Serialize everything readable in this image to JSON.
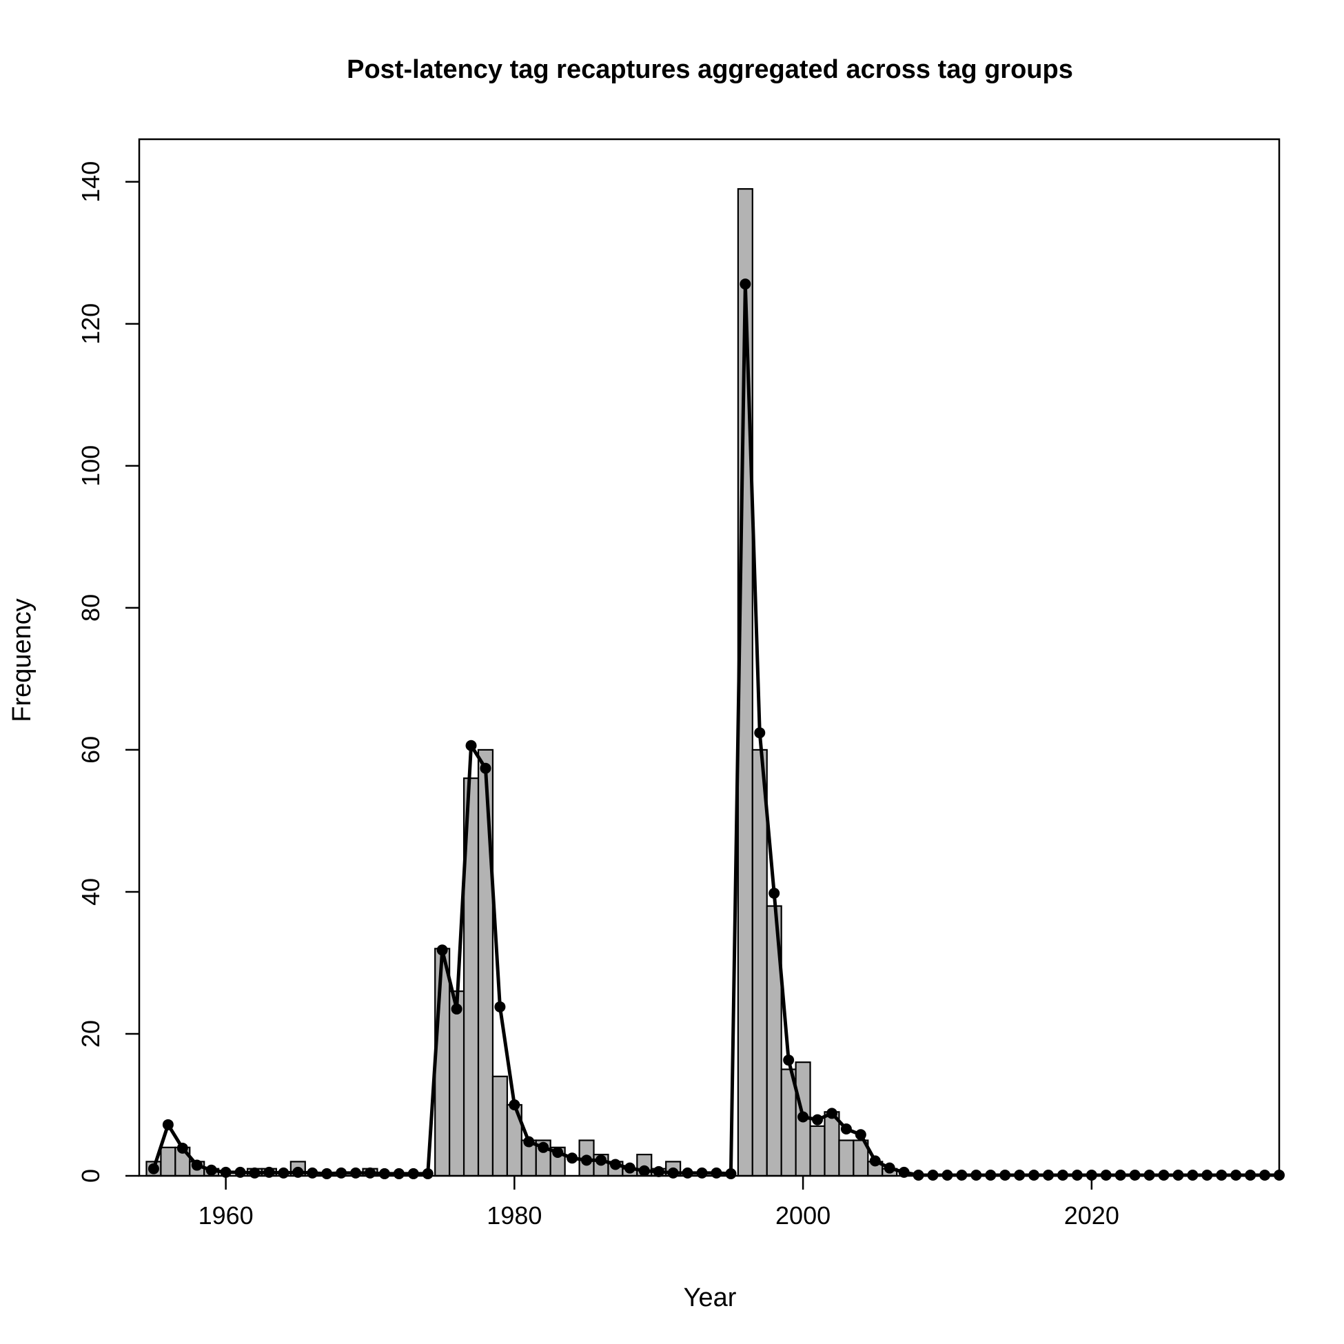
{
  "chart_data": {
    "type": "bar",
    "title": "Post-latency tag recaptures aggregated across tag groups",
    "xlabel": "Year",
    "ylabel": "Frequency",
    "xlim": [
      1954,
      2033
    ],
    "ylim": [
      0,
      146
    ],
    "x_ticks": [
      1960,
      1980,
      2000,
      2020
    ],
    "y_ticks": [
      0,
      20,
      40,
      60,
      80,
      100,
      120,
      140
    ],
    "grid": false,
    "legend": "none",
    "colors": {
      "bar_fill": "#b3b3b3",
      "bar_stroke": "#000000",
      "line": "#000000"
    },
    "bin_width": 1,
    "series": [
      {
        "kind": "bars",
        "x": [
          1955,
          1956,
          1957,
          1958,
          1959,
          1960,
          1961,
          1962,
          1963,
          1964,
          1965,
          1966,
          1967,
          1968,
          1969,
          1970,
          1971,
          1972,
          1973,
          1974,
          1975,
          1976,
          1977,
          1978,
          1979,
          1980,
          1981,
          1982,
          1983,
          1984,
          1985,
          1986,
          1987,
          1988,
          1989,
          1990,
          1991,
          1992,
          1993,
          1994,
          1995,
          1996,
          1997,
          1998,
          1999,
          2000,
          2001,
          2002,
          2003,
          2004,
          2005,
          2006,
          2007,
          2008,
          2009,
          2010,
          2011,
          2012,
          2013,
          2014,
          2015,
          2016,
          2017,
          2018,
          2019,
          2020,
          2021,
          2022,
          2023,
          2024,
          2025,
          2026,
          2027,
          2028,
          2029,
          2030,
          2031,
          2032,
          2033
        ],
        "values": [
          2,
          4,
          4,
          2,
          1,
          0,
          0,
          1,
          1,
          0,
          2,
          0,
          0,
          0,
          0,
          1,
          0,
          0,
          0,
          0,
          32,
          26,
          56,
          60,
          14,
          10,
          5,
          5,
          4,
          0,
          5,
          3,
          2,
          1,
          3,
          1,
          2,
          0,
          0,
          0,
          0,
          139,
          60,
          38,
          15,
          16,
          7,
          9,
          5,
          5,
          2,
          1,
          0,
          0,
          0,
          0,
          0,
          0,
          0,
          0,
          0,
          0,
          0,
          0,
          0,
          0,
          0,
          0,
          0,
          0,
          0,
          0,
          0,
          0,
          0,
          0,
          0,
          0,
          0
        ]
      },
      {
        "kind": "line-points",
        "x": [
          1955,
          1956,
          1957,
          1958,
          1959,
          1960,
          1961,
          1962,
          1963,
          1964,
          1965,
          1966,
          1967,
          1968,
          1969,
          1970,
          1971,
          1972,
          1973,
          1974,
          1975,
          1976,
          1977,
          1978,
          1979,
          1980,
          1981,
          1982,
          1983,
          1984,
          1985,
          1986,
          1987,
          1988,
          1989,
          1990,
          1991,
          1992,
          1993,
          1994,
          1995,
          1996,
          1997,
          1998,
          1999,
          2000,
          2001,
          2002,
          2003,
          2004,
          2005,
          2006,
          2007,
          2008,
          2009,
          2010,
          2011,
          2012,
          2013,
          2014,
          2015,
          2016,
          2017,
          2018,
          2019,
          2020,
          2021,
          2022,
          2023,
          2024,
          2025,
          2026,
          2027,
          2028,
          2029,
          2030,
          2031,
          2032,
          2033
        ],
        "values": [
          1,
          7.2,
          3.9,
          1.5,
          0.8,
          0.5,
          0.5,
          0.4,
          0.5,
          0.4,
          0.5,
          0.4,
          0.3,
          0.4,
          0.4,
          0.4,
          0.3,
          0.3,
          0.3,
          0.3,
          31.8,
          23.5,
          60.6,
          57.4,
          23.8,
          10,
          4.8,
          4,
          3.3,
          2.5,
          2.2,
          2.2,
          1.6,
          1.1,
          0.7,
          0.6,
          0.4,
          0.4,
          0.4,
          0.4,
          0.3,
          125.6,
          62.4,
          39.8,
          16.3,
          8.3,
          7.9,
          8.8,
          6.6,
          5.8,
          2.1,
          1.1,
          0.5,
          0.1,
          0.1,
          0.1,
          0.1,
          0.1,
          0.1,
          0.1,
          0.1,
          0.1,
          0.1,
          0.1,
          0.1,
          0.1,
          0.1,
          0.1,
          0.1,
          0.1,
          0.1,
          0.1,
          0.1,
          0.1,
          0.1,
          0.1,
          0.1,
          0.1,
          0.1
        ]
      }
    ]
  }
}
